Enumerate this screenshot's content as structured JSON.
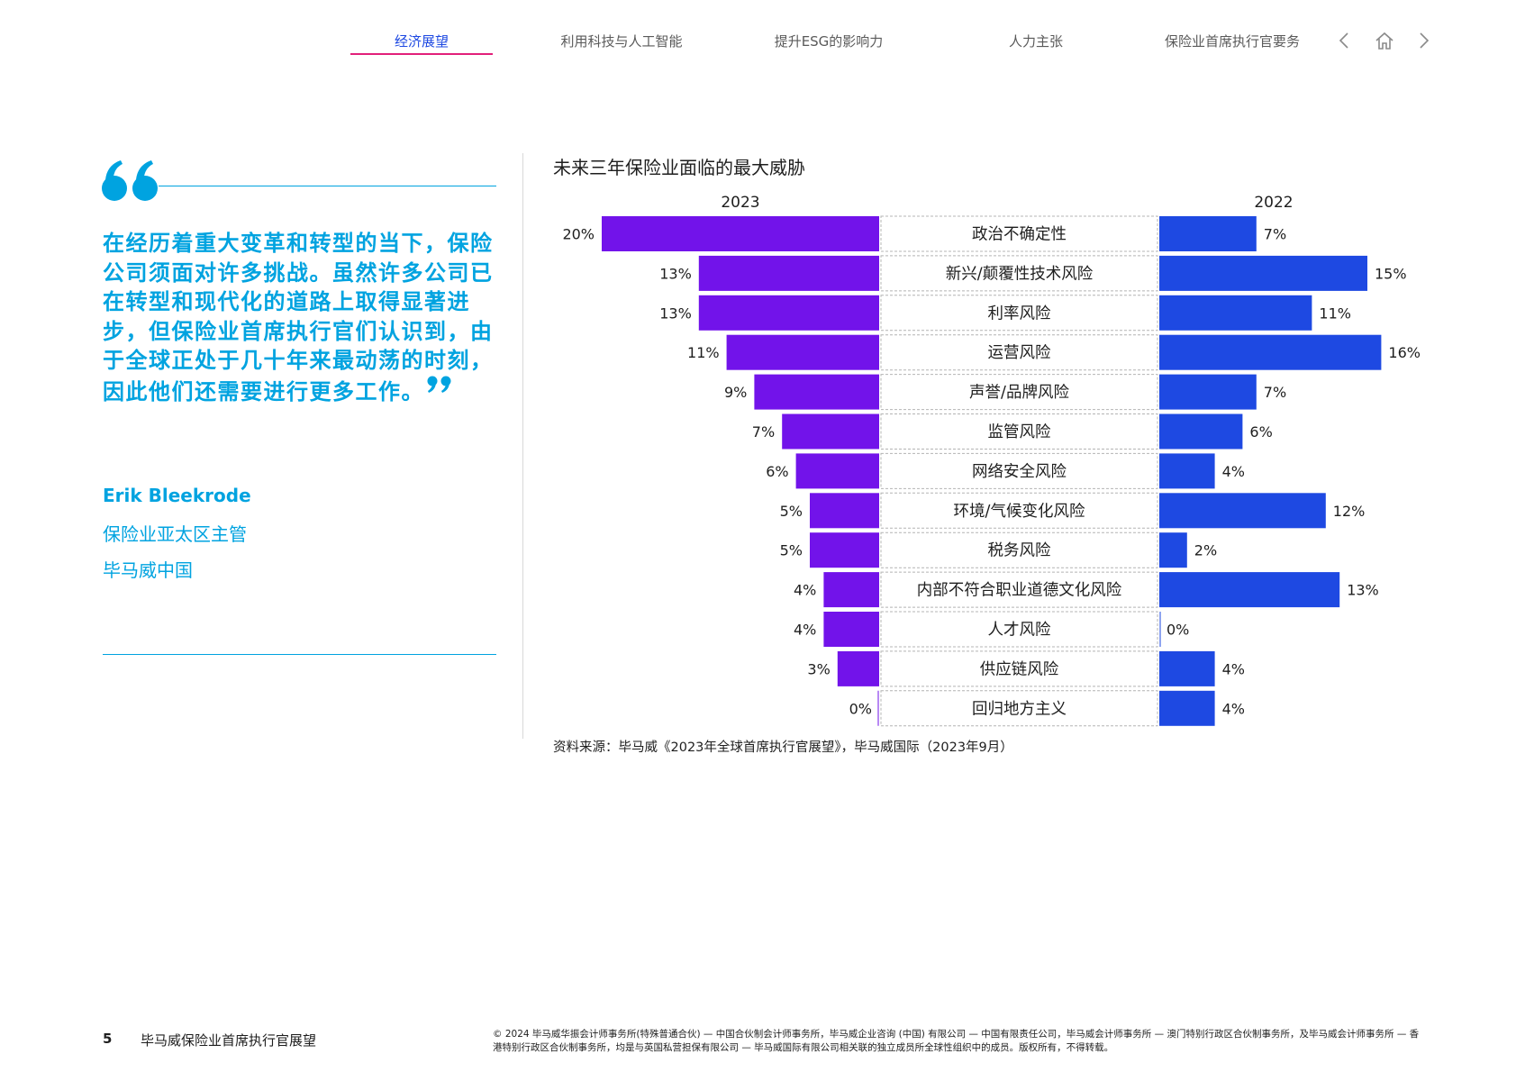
{
  "nav": {
    "tabs": [
      {
        "label": "经济展望",
        "active": true
      },
      {
        "label": "利用科技与人工智能",
        "active": false
      },
      {
        "label": "提升ESG的影响力",
        "active": false
      },
      {
        "label": "人力主张",
        "active": false
      },
      {
        "label": "保险业首席执行官要务",
        "active": false
      }
    ],
    "icons": [
      "chevron-left-icon",
      "home-icon",
      "chevron-right-icon"
    ],
    "active_color": "#1e49e2",
    "underline_color": "#e2207a"
  },
  "quote": {
    "text": "在经历着重大变革和转型的当下，保险公司须面对许多挑战。虽然许多公司已在转型和现代化的道路上取得显著进步，但保险业首席执行官们认识到，由于全球正处于几十年来最动荡的时刻，因此他们还需要进行更多工作。",
    "author_name": "Erik Bleekrode",
    "author_role": "保险业亚太区主管",
    "author_org": "毕马威中国",
    "color": "#00a3e0"
  },
  "chart_data": {
    "type": "bar",
    "title": "未来三年保险业面临的最大威胁",
    "categories": [
      "政治不确定性",
      "新兴/颠覆性技术风险",
      "利率风险",
      "运营风险",
      "声誉/品牌风险",
      "监管风险",
      "网络安全风险",
      "环境/气候变化风险",
      "税务风险",
      "内部不符合职业道德文化风险",
      "人才风险",
      "供应链风险",
      "回归地方主义"
    ],
    "series": [
      {
        "name": "2023",
        "values": [
          20,
          13,
          13,
          11,
          9,
          7,
          6,
          5,
          5,
          4,
          4,
          3,
          0
        ],
        "color": "#7213ea"
      },
      {
        "name": "2022",
        "values": [
          7,
          15,
          11,
          16,
          7,
          6,
          4,
          12,
          2,
          13,
          0,
          4,
          4
        ],
        "color": "#1e49e2"
      }
    ],
    "value_suffix": "%",
    "layout": "butterfly",
    "source": "资料来源：毕马威《2023年全球首席执行官展望》，毕马威国际（2023年9月）"
  },
  "footer": {
    "page_number": "5",
    "doc_title": "毕马威保险业首席执行官展望",
    "legal": "© 2024 毕马威华振会计师事务所(特殊普通合伙) — 中国合伙制会计师事务所，毕马威企业咨询 (中国) 有限公司 — 中国有限责任公司，毕马威会计师事务所 — 澳门特别行政区合伙制事务所，及毕马威会计师事务所 — 香港特别行政区合伙制事务所，均是与英国私营担保有限公司 — 毕马威国际有限公司相关联的独立成员所全球性组织中的成员。版权所有，不得转载。"
  }
}
